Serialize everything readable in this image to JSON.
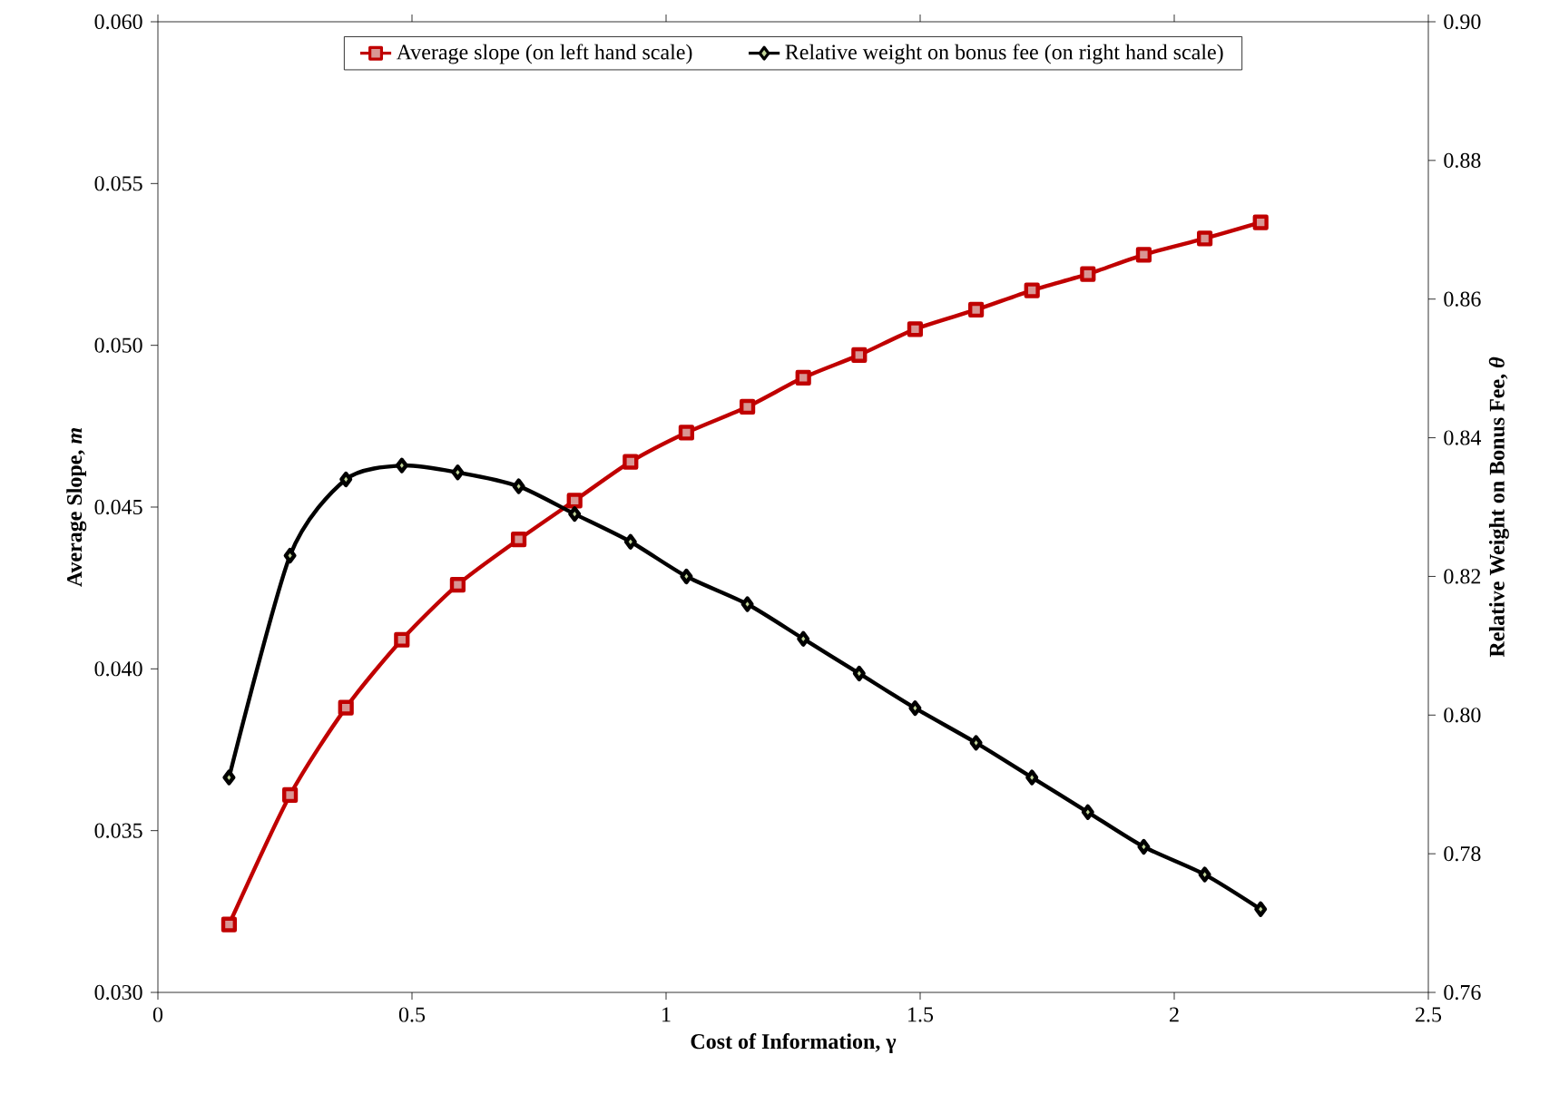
{
  "chart_data": {
    "type": "line",
    "xlabel": "Cost of Information, γ",
    "ylabel": "Average Slope, *m*",
    "y2label": "Relative Weight on Bonus Fee, *θ*",
    "x": [
      0.14,
      0.26,
      0.37,
      0.48,
      0.59,
      0.71,
      0.82,
      0.93,
      1.04,
      1.16,
      1.27,
      1.38,
      1.49,
      1.61,
      1.72,
      1.83,
      1.94,
      2.06,
      2.17
    ],
    "series": [
      {
        "name": "Average slope (on left hand scale)",
        "color": "#c00000",
        "marker": "square",
        "values": [
          0.0321,
          0.0361,
          0.0388,
          0.0409,
          0.0426,
          0.044,
          0.0452,
          0.0464,
          0.0473,
          0.0481,
          0.049,
          0.0497,
          0.0505,
          0.0511,
          0.0517,
          0.0522,
          0.0528,
          0.0533,
          0.0538
        ]
      },
      {
        "name": "Relative weight on bonus fee (on right hand scale)",
        "color": "#000000",
        "marker": "diamond",
        "axis": "y2",
        "values": [
          0.791,
          0.823,
          0.834,
          0.836,
          0.835,
          0.833,
          0.829,
          0.825,
          0.82,
          0.816,
          0.811,
          0.806,
          0.801,
          0.796,
          0.791,
          0.786,
          0.781,
          0.777,
          0.772
        ]
      }
    ],
    "xlim": [
      0,
      2.5
    ],
    "xticks": [
      0,
      0.5,
      1,
      1.5,
      2,
      2.5
    ],
    "ylim": [
      0.03,
      0.06
    ],
    "yticks": [
      {
        "value": 0.03,
        "label": "0.030"
      },
      {
        "value": 0.035,
        "label": "0.035"
      },
      {
        "value": 0.04,
        "label": "0.040"
      },
      {
        "value": 0.045,
        "label": "0.045"
      },
      {
        "value": 0.05,
        "label": "0.050"
      },
      {
        "value": 0.055,
        "label": "0.055"
      },
      {
        "value": 0.06,
        "label": "0.060"
      }
    ],
    "y2lim": [
      0.76,
      0.9
    ],
    "y2ticks": [
      {
        "value": 0.76,
        "label": "0.76"
      },
      {
        "value": 0.78,
        "label": "0.78"
      },
      {
        "value": 0.8,
        "label": "0.80"
      },
      {
        "value": 0.82,
        "label": "0.82"
      },
      {
        "value": 0.84,
        "label": "0.84"
      },
      {
        "value": 0.86,
        "label": "0.86"
      },
      {
        "value": 0.88,
        "label": "0.88"
      },
      {
        "value": 0.9,
        "label": "0.90"
      }
    ],
    "legend": "top",
    "grid": false
  }
}
